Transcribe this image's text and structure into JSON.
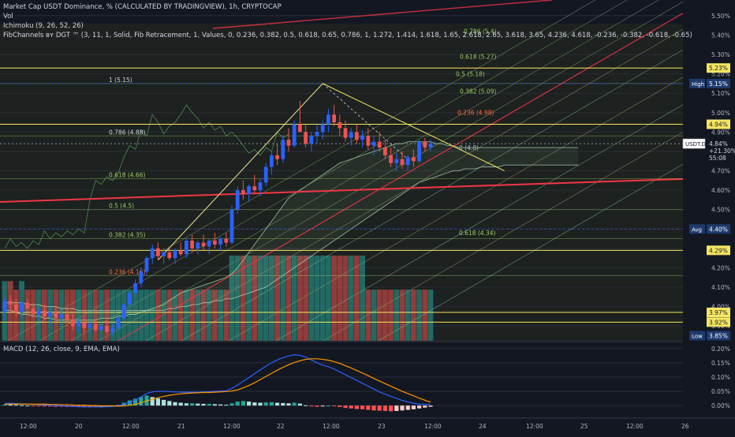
{
  "header": {
    "title": "Market Cap USDT Dominance, % (CALCULATED BY TRADINGVIEW), 1h, CRYPTOCAP",
    "volume": "Vol",
    "ichimoku": "Ichimoku (9, 26, 52, 26)",
    "fib": "FibChannels ʙʏ DGT ™ (3, 11, 1, Solid, Fib Retracement, 1, Values, 0, 0.236, 0.382, 0.5, 0.618, 0.65, 0.786, 1, 1.272, 1.414, 1.618, 1.65, 2.618, 2.65, 3.618, 3.65, 4.236, 4.618, -0.236, -0.382, -0.618, -0.65)",
    "macd": "MACD (12, 26, close, 9, EMA, EMA)"
  },
  "colors": {
    "background": "#131722",
    "up": "#2962ff",
    "down": "#ef5350",
    "yellow": "#f5e663",
    "red_line": "#f23645",
    "macd_line": "#2962ff",
    "signal_line": "#ff9800"
  },
  "chart_data": [
    {
      "type": "candlestick",
      "axis_ticks": [
        "5.50%",
        "5.40%",
        "5.30%",
        "5.20%",
        "5.10%",
        "5.00%",
        "4.90%",
        "4.80%",
        "4.70%",
        "4.60%",
        "4.50%",
        "4.40%",
        "4.30%",
        "4.20%",
        "4.10%",
        "4.00%",
        "3.90%"
      ],
      "ylim": [
        3.84,
        5.54
      ],
      "x_labels": [
        "12:00",
        "20",
        "12:00",
        "21",
        "12:00",
        "22",
        "12:00",
        "23",
        "12:00",
        "24",
        "12:00",
        "25",
        "12:00",
        "26"
      ],
      "price_tags": [
        {
          "label": "5.23%",
          "value": 5.23,
          "style": "yellow"
        },
        {
          "label": "5.15%",
          "value": 5.15,
          "style": "navy",
          "tag": "High"
        },
        {
          "label": "4.94%",
          "value": 4.94,
          "style": "yellow"
        },
        {
          "label": "USDT.D",
          "extra": [
            "4.84%",
            "+21.30%",
            "55:08"
          ],
          "value": 4.84,
          "style": "last"
        },
        {
          "label": "4.40%",
          "value": 4.4,
          "style": "navy",
          "tag": "Avg"
        },
        {
          "label": "4.29%",
          "value": 4.29,
          "style": "yellow"
        },
        {
          "label": "3.97%",
          "value": 3.97,
          "style": "yellow"
        },
        {
          "label": "3.92%",
          "value": 3.92,
          "style": "yellow"
        },
        {
          "label": "3.85%",
          "value": 3.85,
          "style": "navy",
          "tag": "Low"
        }
      ],
      "fib_labels": [
        {
          "text": "1 (5.15)",
          "value": 5.15
        },
        {
          "text": "0.786 (4.88)",
          "value": 4.88
        },
        {
          "text": "0.618 (4.66)",
          "value": 4.66
        },
        {
          "text": "0.5 (4.5)",
          "value": 4.5
        },
        {
          "text": "0.382 (4.35)",
          "value": 4.35
        },
        {
          "text": "0.236 (4.16)",
          "value": 4.16
        }
      ],
      "channel_labels": [
        {
          "text": "0.786 (5.4)",
          "value": 5.4
        },
        {
          "text": "0.618 (5.27)",
          "value": 5.27
        },
        {
          "text": "0.5 (5.18)",
          "value": 5.18
        },
        {
          "text": "0.382 (5.09)",
          "value": 5.09
        },
        {
          "text": "0.236 (4.98)",
          "value": 4.98
        },
        {
          "text": "0 (4.8)",
          "value": 4.8
        },
        {
          "text": "0.618 (4.34)",
          "value": 4.34
        }
      ],
      "candles": [
        [
          3.97,
          4.05,
          3.93,
          4.03
        ],
        [
          4.03,
          4.06,
          3.98,
          4.01
        ],
        [
          4.01,
          4.04,
          3.95,
          3.97
        ],
        [
          3.97,
          4.03,
          3.94,
          4.02
        ],
        [
          4.02,
          4.04,
          3.97,
          3.99
        ],
        [
          3.99,
          4.02,
          3.94,
          3.96
        ],
        [
          3.96,
          4.0,
          3.92,
          3.98
        ],
        [
          3.98,
          4.01,
          3.93,
          3.95
        ],
        [
          3.95,
          3.99,
          3.91,
          3.97
        ],
        [
          3.97,
          4.0,
          3.93,
          3.94
        ],
        [
          3.94,
          3.98,
          3.9,
          3.96
        ],
        [
          3.96,
          3.99,
          3.92,
          3.93
        ],
        [
          3.93,
          3.96,
          3.88,
          3.9
        ],
        [
          3.9,
          3.94,
          3.87,
          3.92
        ],
        [
          3.92,
          3.95,
          3.87,
          3.89
        ],
        [
          3.89,
          3.93,
          3.86,
          3.91
        ],
        [
          3.91,
          3.94,
          3.87,
          3.88
        ],
        [
          3.88,
          3.92,
          3.86,
          3.9
        ],
        [
          3.9,
          3.93,
          3.86,
          3.87
        ],
        [
          3.87,
          3.91,
          3.85,
          3.89
        ],
        [
          3.89,
          3.95,
          3.88,
          3.94
        ],
        [
          3.94,
          4.02,
          3.93,
          4.01
        ],
        [
          4.01,
          4.08,
          3.99,
          4.07
        ],
        [
          4.07,
          4.14,
          4.05,
          4.12
        ],
        [
          4.12,
          4.2,
          4.1,
          4.18
        ],
        [
          4.18,
          4.26,
          4.16,
          4.25
        ],
        [
          4.25,
          4.32,
          4.22,
          4.3
        ],
        [
          4.3,
          4.33,
          4.24,
          4.26
        ],
        [
          4.26,
          4.3,
          4.22,
          4.28
        ],
        [
          4.28,
          4.31,
          4.24,
          4.25
        ],
        [
          4.25,
          4.3,
          4.22,
          4.29
        ],
        [
          4.29,
          4.33,
          4.26,
          4.27
        ],
        [
          4.27,
          4.35,
          4.25,
          4.34
        ],
        [
          4.34,
          4.37,
          4.28,
          4.3
        ],
        [
          4.3,
          4.34,
          4.27,
          4.33
        ],
        [
          4.33,
          4.37,
          4.29,
          4.31
        ],
        [
          4.31,
          4.35,
          4.27,
          4.34
        ],
        [
          4.34,
          4.38,
          4.3,
          4.32
        ],
        [
          4.32,
          4.36,
          4.29,
          4.35
        ],
        [
          4.35,
          4.38,
          4.31,
          4.33
        ],
        [
          4.33,
          4.52,
          4.32,
          4.5
        ],
        [
          4.5,
          4.62,
          4.48,
          4.6
        ],
        [
          4.6,
          4.65,
          4.55,
          4.58
        ],
        [
          4.58,
          4.63,
          4.54,
          4.62
        ],
        [
          4.62,
          4.68,
          4.58,
          4.6
        ],
        [
          4.6,
          4.66,
          4.57,
          4.64
        ],
        [
          4.64,
          4.74,
          4.62,
          4.72
        ],
        [
          4.72,
          4.8,
          4.68,
          4.78
        ],
        [
          4.78,
          4.84,
          4.73,
          4.76
        ],
        [
          4.76,
          4.88,
          4.74,
          4.86
        ],
        [
          4.86,
          4.92,
          4.8,
          4.83
        ],
        [
          4.83,
          4.96,
          4.82,
          4.94
        ],
        [
          4.94,
          5.06,
          4.9,
          4.9
        ],
        [
          4.9,
          4.94,
          4.82,
          4.84
        ],
        [
          4.84,
          4.9,
          4.8,
          4.88
        ],
        [
          4.88,
          4.94,
          4.84,
          4.9
        ],
        [
          4.9,
          4.96,
          4.86,
          4.94
        ],
        [
          4.94,
          5.02,
          4.9,
          4.99
        ],
        [
          4.99,
          5.04,
          4.93,
          4.95
        ],
        [
          4.95,
          4.99,
          4.88,
          4.92
        ],
        [
          4.92,
          4.96,
          4.85,
          4.87
        ],
        [
          4.87,
          4.92,
          4.83,
          4.9
        ],
        [
          4.9,
          4.94,
          4.84,
          4.86
        ],
        [
          4.86,
          4.91,
          4.82,
          4.88
        ],
        [
          4.88,
          4.92,
          4.81,
          4.83
        ],
        [
          4.83,
          4.88,
          4.78,
          4.85
        ],
        [
          4.85,
          4.9,
          4.8,
          4.82
        ],
        [
          4.82,
          4.86,
          4.76,
          4.78
        ],
        [
          4.78,
          4.82,
          4.72,
          4.74
        ],
        [
          4.74,
          4.79,
          4.7,
          4.76
        ],
        [
          4.76,
          4.8,
          4.71,
          4.73
        ],
        [
          4.73,
          4.78,
          4.7,
          4.77
        ],
        [
          4.77,
          4.81,
          4.72,
          4.75
        ],
        [
          4.75,
          4.86,
          4.74,
          4.85
        ],
        [
          4.85,
          4.87,
          4.8,
          4.82
        ],
        [
          4.82,
          4.86,
          4.8,
          4.84
        ]
      ],
      "ichimoku": {
        "span_a": [
          3.98,
          3.98,
          3.97,
          3.96,
          3.96,
          3.95,
          3.95,
          3.94,
          3.94,
          3.93,
          3.93,
          3.93,
          3.93,
          3.93,
          3.93,
          3.93,
          3.93,
          3.94,
          3.94,
          3.94,
          3.95,
          3.95,
          3.96,
          3.96,
          3.97,
          3.98,
          3.99,
          4.0,
          4.01,
          4.03,
          4.05,
          4.07,
          4.08,
          4.09,
          4.1,
          4.11,
          4.12,
          4.13,
          4.14,
          4.15,
          4.17,
          4.2,
          4.24,
          4.28,
          4.32,
          4.36,
          4.4,
          4.44,
          4.48,
          4.52,
          4.56,
          4.58,
          4.6,
          4.62,
          4.64,
          4.66,
          4.68,
          4.7,
          4.72,
          4.74,
          4.75,
          4.76,
          4.77,
          4.78,
          4.79,
          4.8,
          4.81,
          4.82,
          4.83,
          4.84,
          4.84,
          4.85,
          4.85,
          4.85,
          4.85,
          4.85,
          4.84,
          4.84,
          4.83,
          4.83,
          4.82,
          4.82,
          4.82,
          4.82,
          4.82,
          4.82,
          4.82,
          4.82,
          4.82,
          4.82,
          4.82,
          4.82,
          4.82,
          4.82,
          4.82,
          4.82,
          4.82,
          4.82,
          4.82,
          4.82,
          4.82,
          4.82
        ],
        "span_b": [
          4.02,
          4.02,
          4.02,
          4.02,
          4.01,
          4.01,
          4.01,
          4.0,
          4.0,
          4.0,
          3.99,
          3.99,
          3.99,
          3.98,
          3.98,
          3.98,
          3.98,
          3.98,
          3.98,
          3.98,
          3.98,
          3.98,
          3.98,
          3.98,
          3.98,
          3.98,
          3.98,
          3.98,
          3.98,
          3.99,
          3.99,
          4.0,
          4.0,
          4.01,
          4.01,
          4.02,
          4.02,
          4.03,
          4.03,
          4.04,
          4.04,
          4.05,
          4.06,
          4.07,
          4.08,
          4.09,
          4.1,
          4.12,
          4.14,
          4.16,
          4.18,
          4.2,
          4.22,
          4.24,
          4.26,
          4.28,
          4.3,
          4.32,
          4.34,
          4.36,
          4.38,
          4.4,
          4.42,
          4.44,
          4.46,
          4.48,
          4.5,
          4.52,
          4.54,
          4.56,
          4.58,
          4.6,
          4.62,
          4.64,
          4.65,
          4.66,
          4.67,
          4.68,
          4.69,
          4.7,
          4.7,
          4.71,
          4.71,
          4.71,
          4.72,
          4.72,
          4.72,
          4.72,
          4.73,
          4.73,
          4.73,
          4.73,
          4.73,
          4.73,
          4.73,
          4.73,
          4.73,
          4.73,
          4.73,
          4.73,
          4.73,
          4.73
        ]
      }
    },
    {
      "type": "histogram",
      "title": "Volume",
      "values": [
        7,
        7,
        6,
        7,
        6,
        6,
        6,
        6,
        6,
        6,
        6,
        6,
        6,
        6,
        6,
        6,
        6,
        6,
        6,
        6,
        6,
        6,
        6,
        6,
        6,
        6,
        6,
        6,
        6,
        6,
        6,
        6,
        6,
        6,
        6,
        6,
        6,
        6,
        6,
        6,
        10,
        10,
        10,
        10,
        10,
        10,
        10,
        10,
        10,
        10,
        10,
        10,
        10,
        10,
        10,
        10,
        10,
        10,
        10,
        10,
        10,
        10,
        10,
        10,
        6,
        6,
        6,
        6,
        6,
        6,
        6,
        6,
        6,
        6,
        6,
        6
      ]
    },
    {
      "type": "line",
      "title": "MACD (12, 26, close, 9, EMA, EMA)",
      "axis_ticks": [
        "0.20%",
        "0.15%",
        "0.10%",
        "0.05%",
        "0.00%"
      ],
      "ylim": [
        -0.03,
        0.205
      ],
      "hist": [
        0.004,
        0.003,
        0.002,
        0.001,
        0.0,
        -0.001,
        -0.002,
        -0.003,
        -0.003,
        -0.004,
        -0.004,
        -0.005,
        -0.005,
        -0.005,
        -0.006,
        -0.006,
        -0.006,
        -0.005,
        -0.004,
        -0.003,
        0.003,
        0.01,
        0.018,
        0.024,
        0.03,
        0.035,
        0.03,
        0.025,
        0.02,
        0.016,
        0.012,
        0.01,
        0.008,
        0.008,
        0.007,
        0.006,
        0.006,
        0.005,
        0.004,
        0.003,
        0.008,
        0.014,
        0.016,
        0.014,
        0.011,
        0.01,
        0.011,
        0.012,
        0.01,
        0.009,
        0.008,
        0.01,
        0.007,
        0.001,
        -0.003,
        -0.004,
        -0.003,
        0.0,
        -0.002,
        -0.005,
        -0.008,
        -0.01,
        -0.012,
        -0.013,
        -0.015,
        -0.017,
        -0.018,
        -0.019,
        -0.02,
        -0.019,
        -0.017,
        -0.015,
        -0.013,
        -0.01,
        -0.007,
        -0.004
      ],
      "macd": [
        0.008,
        0.008,
        0.007,
        0.006,
        0.005,
        0.004,
        0.003,
        0.002,
        0.001,
        0.0,
        -0.001,
        -0.002,
        -0.003,
        -0.004,
        -0.004,
        -0.005,
        -0.005,
        -0.005,
        -0.004,
        -0.003,
        0.0,
        0.005,
        0.012,
        0.02,
        0.03,
        0.042,
        0.048,
        0.05,
        0.05,
        0.049,
        0.048,
        0.047,
        0.047,
        0.047,
        0.047,
        0.048,
        0.049,
        0.05,
        0.051,
        0.052,
        0.06,
        0.072,
        0.085,
        0.098,
        0.112,
        0.125,
        0.138,
        0.15,
        0.16,
        0.168,
        0.174,
        0.178,
        0.176,
        0.17,
        0.16,
        0.15,
        0.142,
        0.136,
        0.128,
        0.118,
        0.108,
        0.098,
        0.088,
        0.078,
        0.068,
        0.058,
        0.048,
        0.04,
        0.032,
        0.025,
        0.018,
        0.013,
        0.008,
        0.005,
        0.004,
        0.004
      ],
      "signal": [
        0.004,
        0.005,
        0.005,
        0.005,
        0.005,
        0.005,
        0.005,
        0.005,
        0.004,
        0.004,
        0.003,
        0.003,
        0.002,
        0.001,
        0.001,
        0.0,
        0.0,
        -0.001,
        -0.001,
        -0.001,
        -0.002,
        -0.001,
        0.001,
        0.004,
        0.01,
        0.016,
        0.022,
        0.028,
        0.032,
        0.036,
        0.039,
        0.041,
        0.043,
        0.044,
        0.045,
        0.046,
        0.046,
        0.047,
        0.048,
        0.049,
        0.051,
        0.055,
        0.062,
        0.07,
        0.08,
        0.091,
        0.102,
        0.113,
        0.124,
        0.134,
        0.143,
        0.151,
        0.157,
        0.162,
        0.164,
        0.164,
        0.162,
        0.159,
        0.154,
        0.148,
        0.14,
        0.132,
        0.123,
        0.114,
        0.105,
        0.095,
        0.086,
        0.077,
        0.068,
        0.059,
        0.05,
        0.042,
        0.034,
        0.026,
        0.019,
        0.012
      ]
    }
  ]
}
